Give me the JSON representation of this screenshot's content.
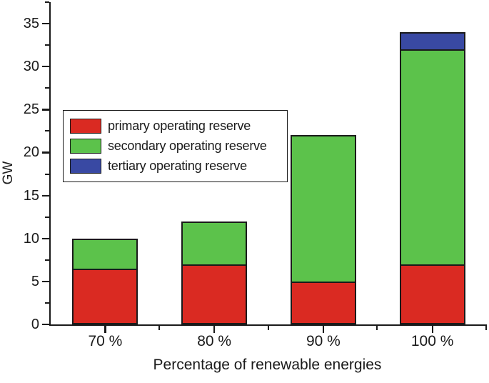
{
  "chart_data": {
    "type": "bar",
    "stacked": true,
    "categories": [
      "70 %",
      "80 %",
      "90 %",
      "100 %"
    ],
    "series": [
      {
        "name": "primary operating reserve",
        "color": "#da2a22",
        "values": [
          6.5,
          7,
          5,
          7
        ]
      },
      {
        "name": "secondary operating reserve",
        "color": "#5cc24b",
        "values": [
          3.5,
          5,
          17,
          25
        ]
      },
      {
        "name": "tertiary operating reserve",
        "color": "#3949a3",
        "values": [
          0,
          0,
          0,
          2
        ]
      }
    ],
    "stack_totals": [
      10,
      12,
      22,
      34
    ],
    "xlabel": "Percentage of renewable energies",
    "ylabel": "GW",
    "ylim": [
      0,
      37.5
    ],
    "y_major_ticks": [
      0,
      5,
      10,
      15,
      20,
      25,
      30,
      35
    ],
    "y_minor_step": 2.5,
    "grid": false,
    "legend_position": "upper-left-inside"
  },
  "colors": {
    "axis": "#1a1a1a",
    "background": "#ffffff"
  }
}
